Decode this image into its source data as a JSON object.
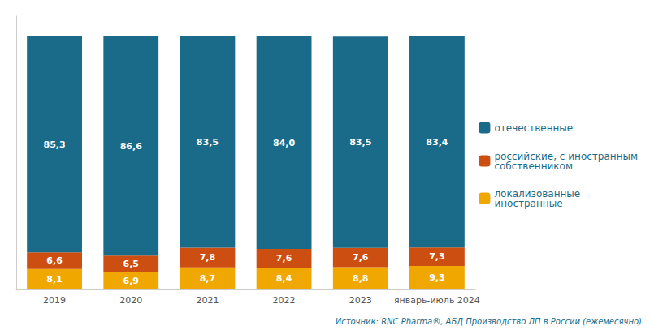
{
  "chart_data": {
    "type": "bar",
    "categories": [
      "2019",
      "2020",
      "2021",
      "2022",
      "2023",
      "январь-июль 2024"
    ],
    "series": [
      {
        "name": "локализованные\nиностранные",
        "color": "#f0a800",
        "values": [
          8.1,
          6.9,
          8.7,
          8.4,
          8.8,
          9.3
        ],
        "value_labels": [
          "8,1",
          "6,9",
          "8,7",
          "8,4",
          "8,8",
          "9,3"
        ]
      },
      {
        "name": "российские, с иностранным\nсобственником",
        "color": "#cc4e10",
        "values": [
          6.6,
          6.5,
          7.8,
          7.6,
          7.6,
          7.3
        ],
        "value_labels": [
          "6,6",
          "6,5",
          "7,8",
          "7,6",
          "7,6",
          "7,3"
        ]
      },
      {
        "name": "отечественные",
        "color": "#1a6b8a",
        "values": [
          85.3,
          86.6,
          83.5,
          84.0,
          83.5,
          83.4
        ],
        "value_labels": [
          "85,3",
          "86,6",
          "83,5",
          "84,0",
          "83,5",
          "83,4"
        ]
      }
    ],
    "annotations": [
      "Источник: RNC Pharma®, АБД Производство ЛП в России (ежемесячно)"
    ],
    "ylim": [
      0,
      108
    ],
    "yticks": [],
    "stacked": true,
    "data_labels": true,
    "grid": false,
    "legend": "right",
    "tick_labels": "x"
  }
}
